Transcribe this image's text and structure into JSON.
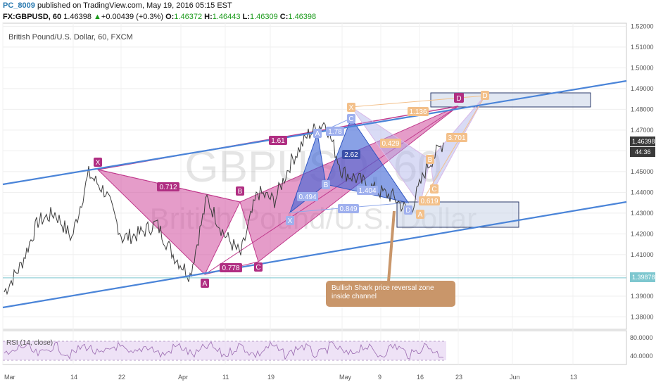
{
  "header": {
    "author": "PC_8009",
    "published": "published on TradingView.com, May 19, 2016 05:15 EST",
    "symbol_interval": "FX:GBPUSD, 60",
    "last": "1.46398",
    "change_arrow": "▲",
    "change": "+0.00439 (+0.3%)",
    "o_label": "O:",
    "o": "1.46372",
    "h_label": "H:",
    "h": "1.46443",
    "l_label": "L:",
    "l": "1.46309",
    "c_label": "C:",
    "c": "1.46398"
  },
  "colors": {
    "pink_pattern": "#d04a9c",
    "blue_pattern": "#3a63d6",
    "lavender_pattern": "#aab0e8",
    "orange_pattern": "#f0a050",
    "channel": "#4a84d8",
    "hline": "#7ec7cf",
    "callout": "#c9966a"
  },
  "chart_data": {
    "type": "line",
    "title": "British Pound/U.S. Dollar, 60, FXCM",
    "watermark": "GBPUSD, 60",
    "watermark_sub": "British Pound/U.S. Dollar",
    "y_ticks": [
      "1.52000",
      "1.51000",
      "1.50000",
      "1.49000",
      "1.48000",
      "1.47000",
      "1.46000",
      "1.45000",
      "1.44000",
      "1.43000",
      "1.42000",
      "1.41000",
      "1.40000",
      "1.39000",
      "1.38000"
    ],
    "ylim": [
      1.374,
      1.5215
    ],
    "x_ticks": [
      "Mar",
      "14",
      "22",
      "Apr",
      "11",
      "19",
      "May",
      "9",
      "16",
      "23",
      "Jun",
      "13"
    ],
    "price_series": {
      "x": [
        "Mar 1",
        "Mar 4",
        "Mar 8",
        "Mar 11",
        "Mar 15",
        "Mar 17",
        "Mar 21",
        "Mar 24",
        "Mar 28",
        "Apr 1",
        "Apr 4",
        "Apr 7",
        "Apr 11",
        "Apr 13",
        "Apr 15",
        "Apr 19",
        "Apr 22",
        "Apr 26",
        "Apr 29",
        "May 2",
        "May 4",
        "May 6",
        "May 10",
        "May 13",
        "May 16",
        "May 18",
        "May 19"
      ],
      "values": [
        1.392,
        1.405,
        1.426,
        1.43,
        1.418,
        1.449,
        1.44,
        1.418,
        1.42,
        1.425,
        1.41,
        1.4,
        1.437,
        1.42,
        1.41,
        1.44,
        1.436,
        1.455,
        1.468,
        1.474,
        1.45,
        1.446,
        1.441,
        1.438,
        1.43,
        1.452,
        1.464
      ]
    },
    "price_label": "1.46398",
    "countdown_label": "44:36",
    "hline_value": 1.39878,
    "hline_label": "1.39878",
    "pattern_labels": {
      "pink": [
        "X",
        "B",
        "A",
        "C",
        "D"
      ],
      "pink_ratios": [
        "0.712",
        "0.778",
        "1.61"
      ],
      "blue": [
        "X",
        "A",
        "B",
        "C",
        "D"
      ],
      "blue_ratios": [
        "1.78",
        "0.494",
        "2.62",
        "0.849",
        "1.404"
      ],
      "orange": [
        "X",
        "A",
        "B",
        "C",
        "D"
      ],
      "orange_ratios": [
        "1.136",
        "0.429",
        "3.701",
        "0.619"
      ]
    },
    "zones": [
      "upper reversal zone",
      "lower reversal zone"
    ],
    "callout": "Bullish Shark price reversal zone inside channel",
    "rsi": {
      "label": "RSI (14, close)",
      "ticks": [
        "80.0000",
        "40.0000"
      ],
      "band_upper": 70,
      "band_lower": 30
    }
  }
}
